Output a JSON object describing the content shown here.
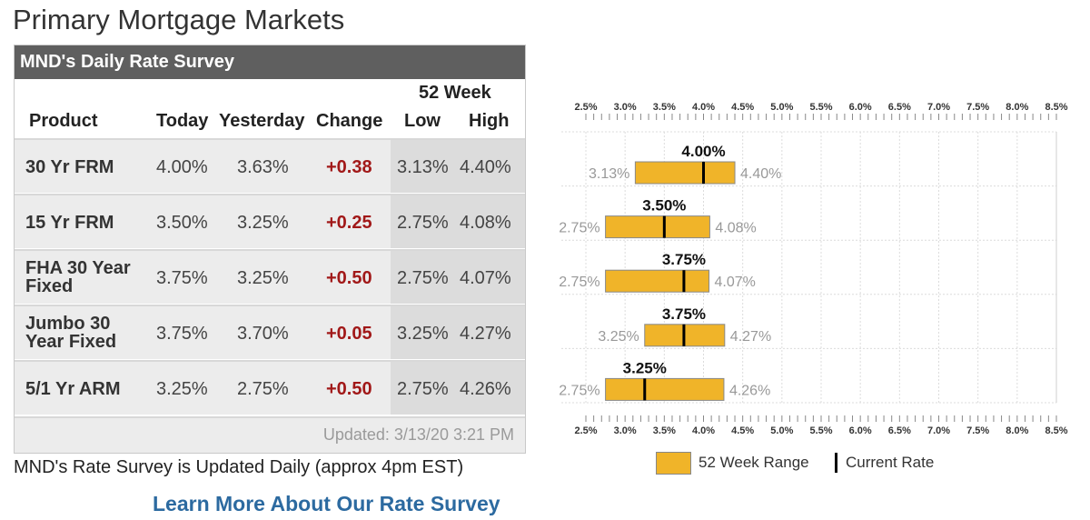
{
  "page": {
    "title": "Primary Mortgage Markets"
  },
  "survey": {
    "header": "MND's Daily Rate Survey",
    "columns": {
      "product": "Product",
      "today": "Today",
      "yesterday": "Yesterday",
      "change": "Change",
      "week_group": "52 Week",
      "low": "Low",
      "high": "High"
    },
    "rows": [
      {
        "product": "30 Yr FRM",
        "today": "4.00%",
        "yesterday": "3.63%",
        "change": "+0.38",
        "low": "3.13%",
        "high": "4.40%"
      },
      {
        "product": "15 Yr FRM",
        "today": "3.50%",
        "yesterday": "3.25%",
        "change": "+0.25",
        "low": "2.75%",
        "high": "4.08%"
      },
      {
        "product": "FHA 30 Year Fixed",
        "today": "3.75%",
        "yesterday": "3.25%",
        "change": "+0.50",
        "low": "2.75%",
        "high": "4.07%"
      },
      {
        "product": "Jumbo 30 Year Fixed",
        "today": "3.75%",
        "yesterday": "3.70%",
        "change": "+0.05",
        "low": "3.25%",
        "high": "4.27%"
      },
      {
        "product": "5/1 Yr ARM",
        "today": "3.25%",
        "yesterday": "2.75%",
        "change": "+0.50",
        "low": "2.75%",
        "high": "4.26%"
      }
    ],
    "updated": "Updated: 3/13/20 3:21 PM"
  },
  "note": "MND's Rate Survey is Updated Daily (approx 4pm EST)",
  "learn_more": "Learn More About Our Rate Survey",
  "chart_data": {
    "type": "range",
    "ticks": [
      "2.5%",
      "3.0%",
      "3.5%",
      "4.0%",
      "4.5%",
      "5.0%",
      "5.5%",
      "6.0%",
      "6.5%",
      "7.0%",
      "7.5%",
      "8.0%",
      "8.5%"
    ],
    "xlim": [
      2.5,
      8.5
    ],
    "grid": true,
    "series": [
      {
        "low": 3.13,
        "high": 4.4,
        "current": 4.0,
        "low_label": "3.13%",
        "high_label": "4.40%",
        "current_label": "4.00%"
      },
      {
        "low": 2.75,
        "high": 4.08,
        "current": 3.5,
        "low_label": "2.75%",
        "high_label": "4.08%",
        "current_label": "3.50%"
      },
      {
        "low": 2.75,
        "high": 4.07,
        "current": 3.75,
        "low_label": "2.75%",
        "high_label": "4.07%",
        "current_label": "3.75%"
      },
      {
        "low": 3.25,
        "high": 4.27,
        "current": 3.75,
        "low_label": "3.25%",
        "high_label": "4.27%",
        "current_label": "3.75%"
      },
      {
        "low": 2.75,
        "high": 4.26,
        "current": 3.25,
        "low_label": "2.75%",
        "high_label": "4.26%",
        "current_label": "3.25%"
      }
    ],
    "legend": {
      "range": "52 Week Range",
      "current": "Current Rate",
      "position": "bottom"
    },
    "colors": {
      "bar": "#f0b429",
      "bar_border": "#888888",
      "marker": "#000000"
    }
  },
  "colors": {
    "header_bg": "#5f5f5f",
    "change_text": "#a11818",
    "link": "#2c6aa0"
  }
}
